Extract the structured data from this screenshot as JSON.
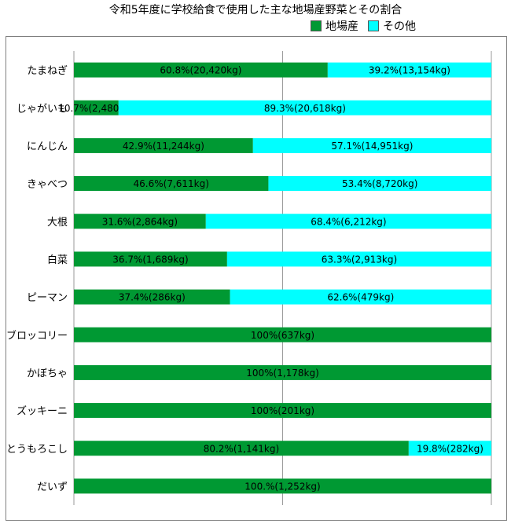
{
  "chart_data": {
    "type": "bar",
    "orientation": "horizontal",
    "stacked": "percent",
    "title": "令和5年度に学校給食で使用した主な地場産野菜とその割合",
    "legend_position": "top-right",
    "grid": true,
    "categories": [
      "たまねぎ",
      "じゃがいも",
      "にんじん",
      "きゃべつ",
      "大根",
      "白菜",
      "ピーマン",
      "ブロッコリー",
      "かぼちゃ",
      "ズッキーニ",
      "とうもろこし",
      "だいず"
    ],
    "series": [
      {
        "name": "地場産",
        "color": "#009933",
        "values": [
          60.8,
          10.7,
          42.9,
          46.6,
          31.6,
          36.7,
          37.4,
          100,
          100,
          100,
          80.2,
          100
        ],
        "labels": [
          "60.8%(20,420kg)",
          "10.7%(2,480kg)",
          "42.9%(11,244kg)",
          "46.6%(7,611kg)",
          "31.6%(2,864kg)",
          "36.7%(1,689kg)",
          "37.4%(286kg)",
          "100%(637kg)",
          "100%(1,178kg)",
          "100%(201kg)",
          "80.2%(1,141kg)",
          "100.%(1,252kg)"
        ]
      },
      {
        "name": "その他",
        "color": "#00ffff",
        "values": [
          39.2,
          89.3,
          57.1,
          53.4,
          68.4,
          63.3,
          62.6,
          0,
          0,
          0,
          19.8,
          0
        ],
        "labels": [
          "39.2%(13,154kg)",
          "89.3%(20,618kg)",
          "57.1%(14,951kg)",
          "53.4%(8,720kg)",
          "68.4%(6,212kg)",
          "63.3%(2,913kg)",
          "62.6%(479kg)",
          "",
          "",
          "",
          "19.8%(282kg)",
          ""
        ]
      }
    ],
    "xlim": [
      0,
      100
    ]
  }
}
